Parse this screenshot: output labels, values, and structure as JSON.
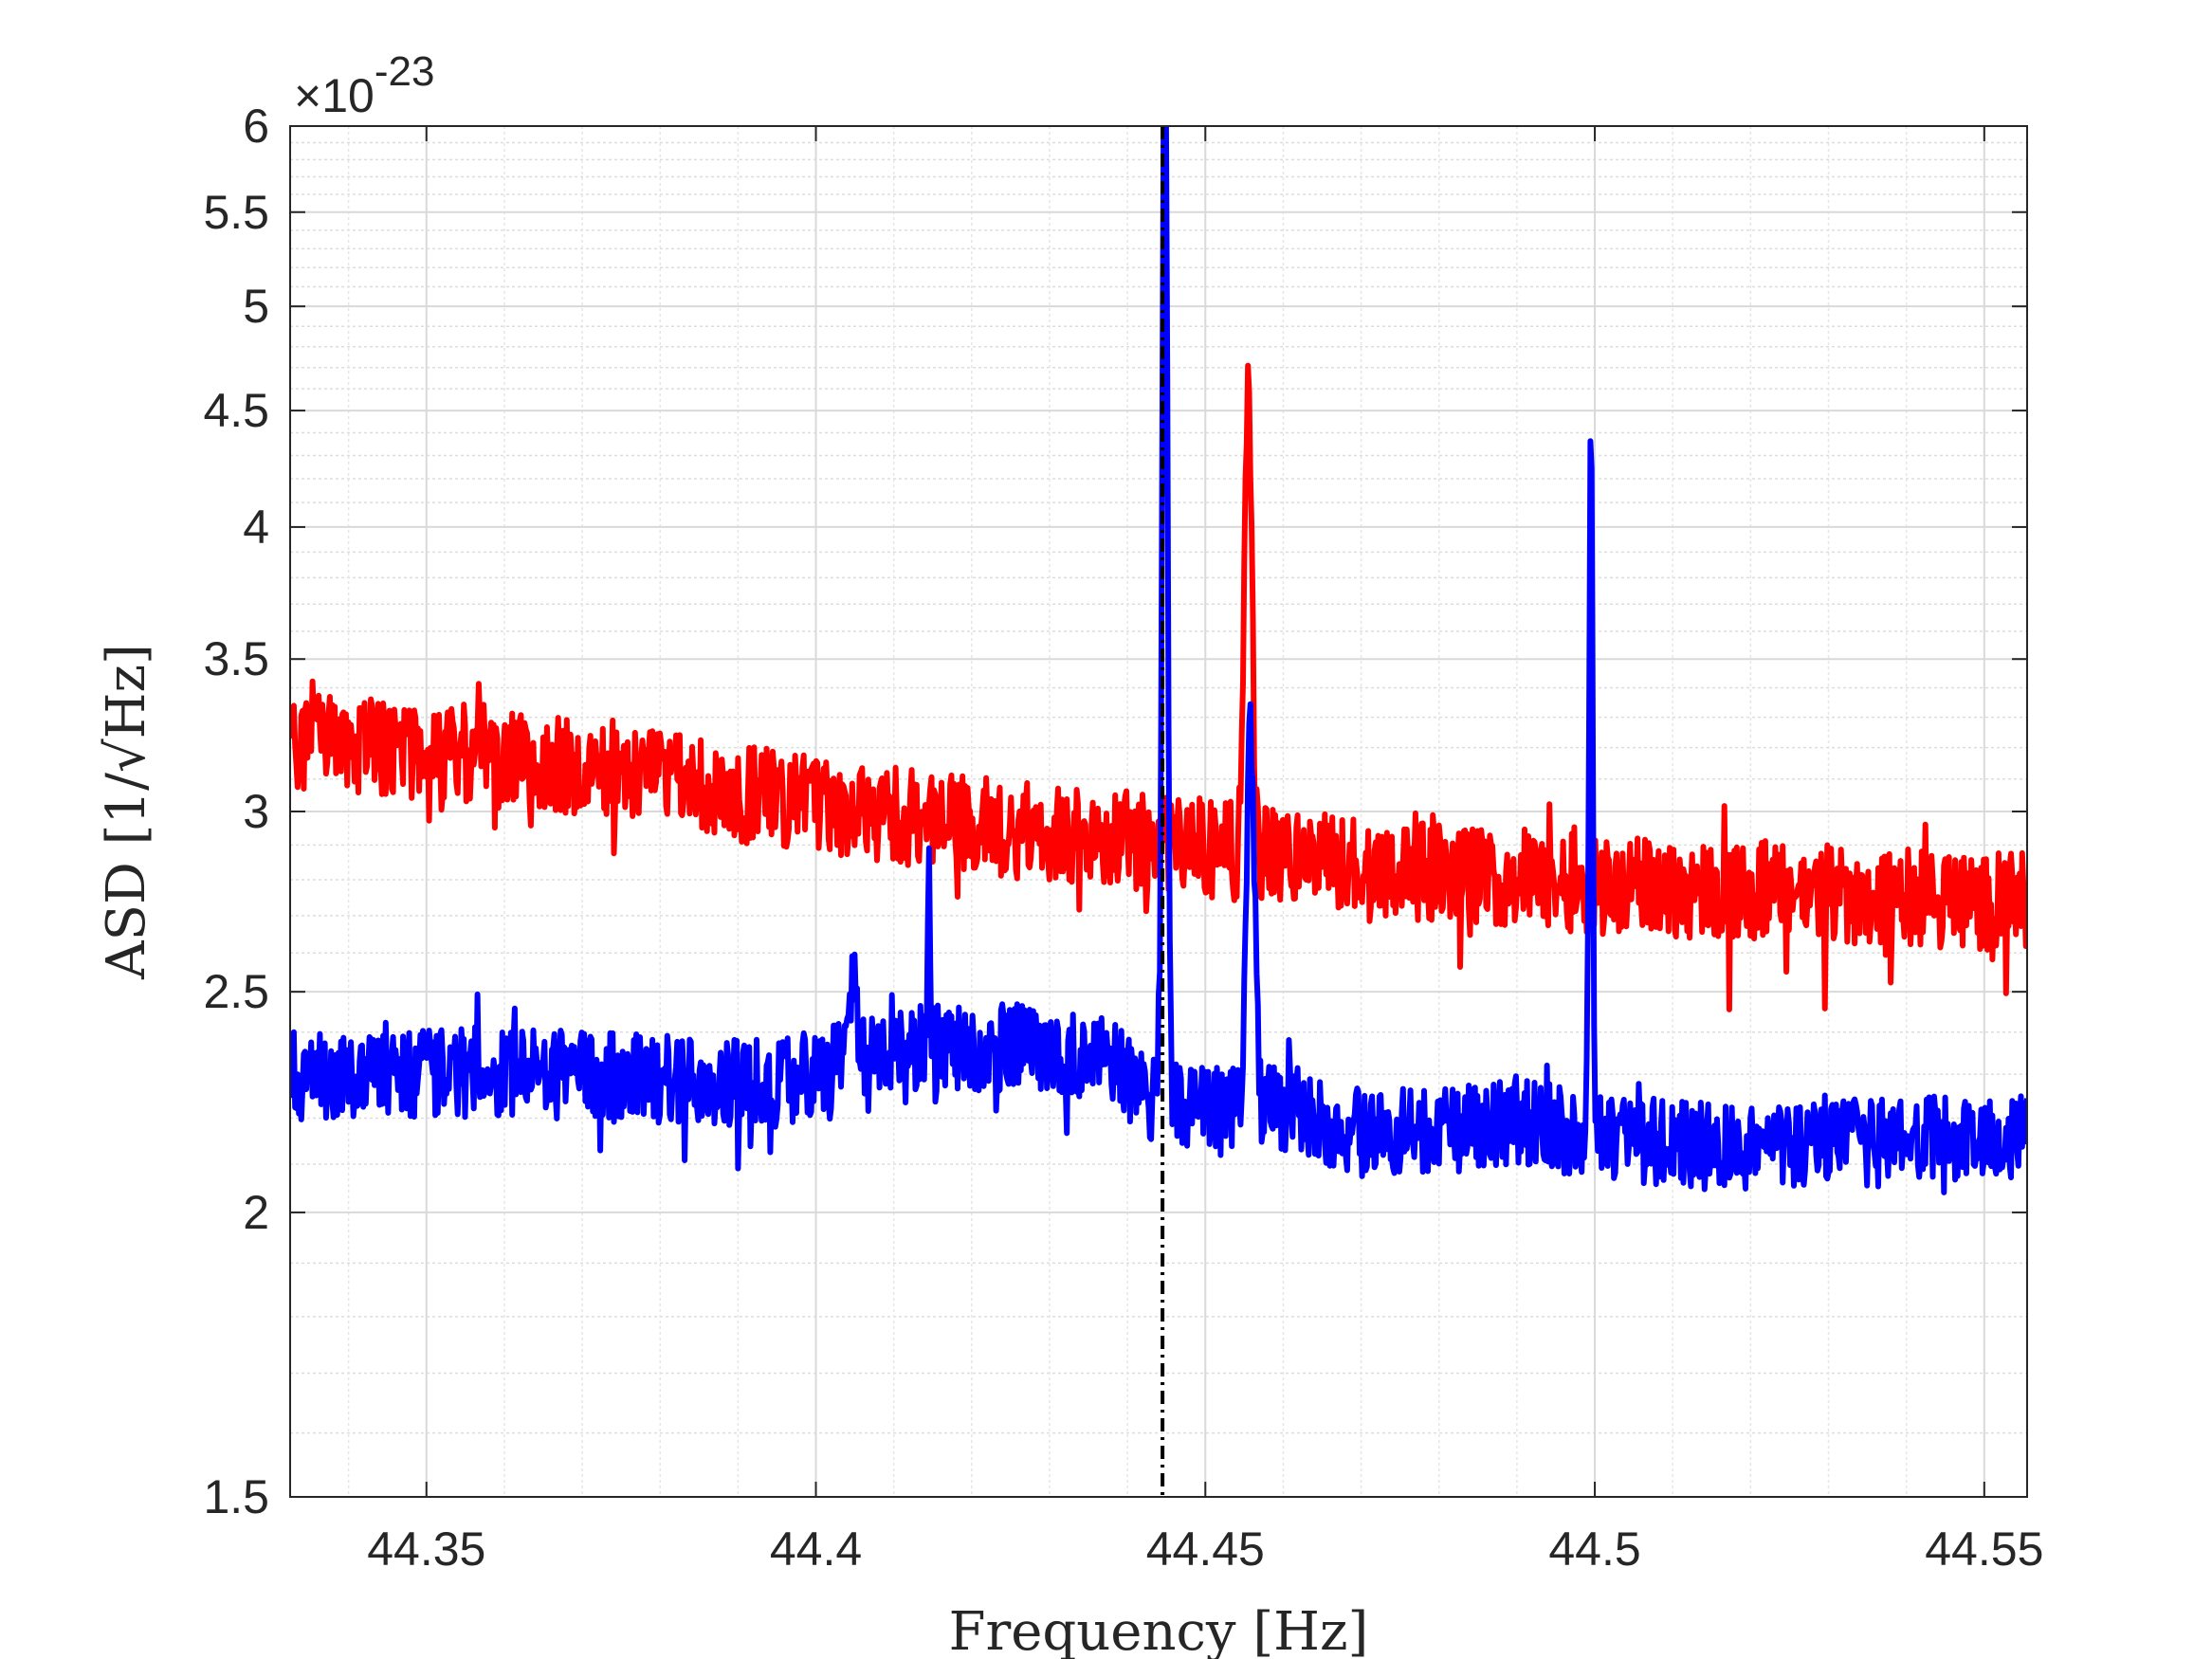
{
  "chart_data": {
    "type": "line",
    "xlabel": "Frequency [Hz]",
    "ylabel": "ASD [1/√Hz]",
    "y_exponent_label": "×10",
    "y_exponent_power": "-23",
    "xlim": [
      44.3325,
      44.5555
    ],
    "ylim": [
      1.5,
      6
    ],
    "yscale": "log",
    "grid": true,
    "x_ticks": [
      44.35,
      44.4,
      44.45,
      44.5,
      44.55
    ],
    "x_tick_labels": [
      "44.35",
      "44.4",
      "44.45",
      "44.5",
      "44.55"
    ],
    "y_ticks": [
      1.5,
      2,
      2.5,
      3,
      3.5,
      4,
      4.5,
      5,
      5.5,
      6
    ],
    "y_tick_labels": [
      "1.5",
      "2",
      "2.5",
      "3",
      "3.5",
      "4",
      "4.5",
      "5",
      "5.5",
      "6"
    ],
    "vline": {
      "x": 44.4445,
      "style": "dash-dot",
      "color": "#000000"
    },
    "series": [
      {
        "color": "#ff0000",
        "baseline": [
          [
            44.3325,
            3.22
          ],
          [
            44.36,
            3.18
          ],
          [
            44.38,
            3.1
          ],
          [
            44.4,
            3.02
          ],
          [
            44.42,
            2.96
          ],
          [
            44.44,
            2.92
          ],
          [
            44.46,
            2.87
          ],
          [
            44.48,
            2.82
          ],
          [
            44.5,
            2.79
          ],
          [
            44.52,
            2.77
          ],
          [
            44.5555,
            2.74
          ]
        ],
        "noise": 0.05,
        "peaks": [
          [
            44.4555,
            4.7,
            0.0006
          ]
        ]
      },
      {
        "color": "#0000ff",
        "baseline": [
          [
            44.3325,
            2.3
          ],
          [
            44.36,
            2.31
          ],
          [
            44.38,
            2.29
          ],
          [
            44.395,
            2.28
          ],
          [
            44.403,
            2.32
          ],
          [
            44.41,
            2.36
          ],
          [
            44.43,
            2.37
          ],
          [
            44.437,
            2.34
          ],
          [
            44.443,
            2.25
          ],
          [
            44.45,
            2.22
          ],
          [
            44.46,
            2.23
          ],
          [
            44.47,
            2.17
          ],
          [
            44.48,
            2.17
          ],
          [
            44.49,
            2.2
          ],
          [
            44.5,
            2.16
          ],
          [
            44.52,
            2.14
          ],
          [
            44.54,
            2.15
          ],
          [
            44.5555,
            2.16
          ]
        ],
        "noise": 0.045,
        "peaks": [
          [
            44.4448,
            6.6,
            0.0004
          ],
          [
            44.4558,
            3.25,
            0.0007
          ],
          [
            44.4995,
            4.4,
            0.0003
          ],
          [
            44.4145,
            2.85,
            0.0002
          ],
          [
            44.4048,
            2.55,
            0.0006
          ]
        ]
      }
    ]
  }
}
